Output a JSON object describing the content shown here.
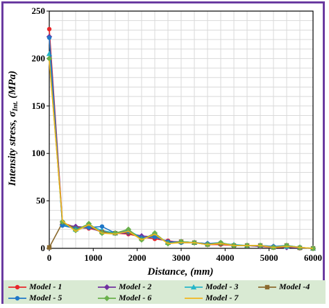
{
  "chart_data": {
    "type": "line",
    "title": "",
    "xlabel": "Distance, (mm)",
    "ylabel": "Intensity stress, σInt. (MPa)",
    "ylabel_main": "Intensity stress, σ",
    "ylabel_sub": "Int.",
    "ylabel_unit": " (MPa)",
    "xlim": [
      0,
      6000
    ],
    "ylim": [
      0,
      250
    ],
    "xticks": [
      0,
      1000,
      2000,
      3000,
      4000,
      5000,
      6000
    ],
    "yticks": [
      0,
      50,
      100,
      150,
      200,
      250
    ],
    "grid": true,
    "legend_position": "bottom",
    "series": [
      {
        "name": "Model - 1",
        "color": "#e8262a",
        "marker": "circle",
        "x": [
          0,
          300,
          600,
          900,
          1200,
          1500,
          1800,
          2100,
          2400,
          2700,
          3000,
          3300,
          3600,
          3900,
          4200,
          4500,
          4800,
          5100,
          5400,
          5700,
          6000
        ],
        "y": [
          231,
          27,
          22,
          21,
          18,
          16,
          15,
          12,
          10,
          8,
          6,
          6,
          4,
          4,
          3,
          3,
          2,
          1,
          1,
          0.5,
          0
        ]
      },
      {
        "name": "Model - 2",
        "color": "#7030a0",
        "marker": "diamond",
        "x": [
          0,
          300,
          600,
          900,
          1200,
          1500,
          1800,
          2100,
          2400,
          2700,
          3000,
          3300,
          3600,
          3900,
          4200,
          4500,
          4800,
          5100,
          5400,
          5700,
          6000
        ],
        "y": [
          223,
          25,
          23,
          22,
          17,
          16,
          16,
          13,
          12,
          7,
          7,
          6,
          5,
          5,
          3,
          3,
          2,
          2,
          1,
          0.5,
          0
        ]
      },
      {
        "name": "Model - 3",
        "color": "#26b6c8",
        "marker": "triangle",
        "x": [
          0,
          300,
          600,
          900,
          1200,
          1500,
          1800,
          2100,
          2400,
          2700,
          3000,
          3300,
          3600,
          3900,
          4200,
          4500,
          4800,
          5100,
          5400,
          5700,
          6000
        ],
        "y": [
          205,
          26,
          20,
          24,
          19,
          16,
          19,
          11,
          13,
          6,
          7,
          6,
          5,
          5,
          4,
          3,
          3,
          2,
          2,
          1,
          0
        ]
      },
      {
        "name": "Model -4",
        "color": "#8b6a2e",
        "marker": "square",
        "x": [
          0,
          300,
          600,
          900,
          1200,
          1500,
          1800,
          2100,
          2400,
          2700,
          3000,
          3300,
          3600,
          3900,
          4200,
          4500,
          4800,
          5100,
          5400,
          5700,
          6000
        ],
        "y": [
          1,
          27,
          21,
          23,
          17,
          16,
          17,
          10,
          14,
          6,
          7,
          6,
          4,
          5,
          3,
          3,
          3,
          1,
          3,
          0.5,
          0
        ]
      },
      {
        "name": "Model - 5",
        "color": "#1f77c8",
        "marker": "circle",
        "x": [
          0,
          300,
          600,
          900,
          1200,
          1500,
          1800,
          2100,
          2400,
          2700,
          3000,
          3300,
          3600,
          3900,
          4200,
          4500,
          4800,
          5100,
          5400,
          5700,
          6000
        ],
        "y": [
          222,
          24,
          21,
          22,
          23,
          16,
          18,
          11,
          12,
          7,
          6,
          6,
          5,
          6,
          3,
          3,
          3,
          2,
          3,
          1,
          0
        ]
      },
      {
        "name": "Model - 6",
        "color": "#6ab04c",
        "marker": "diamond",
        "x": [
          0,
          300,
          600,
          900,
          1200,
          1500,
          1800,
          2100,
          2400,
          2700,
          3000,
          3300,
          3600,
          3900,
          4200,
          4500,
          4800,
          5100,
          5400,
          5700,
          6000
        ],
        "y": [
          200,
          28,
          19,
          26,
          16,
          16,
          20,
          9,
          16,
          5,
          7,
          6,
          4,
          6,
          3,
          3,
          3,
          1,
          3,
          1,
          0
        ]
      },
      {
        "name": "Model - 7",
        "color": "#f2b51c",
        "marker": "none",
        "x": [
          0,
          300,
          600,
          900,
          1200,
          1500,
          1800,
          2100,
          2400,
          2700,
          3000,
          3300,
          3600,
          3900,
          4200,
          4500,
          4800,
          5100,
          5400,
          5700,
          6000
        ],
        "y": [
          198,
          29,
          18,
          25,
          16,
          15,
          18,
          9,
          15,
          5,
          6,
          6,
          4,
          5,
          3,
          3,
          3,
          1,
          2,
          1,
          0
        ]
      }
    ]
  }
}
